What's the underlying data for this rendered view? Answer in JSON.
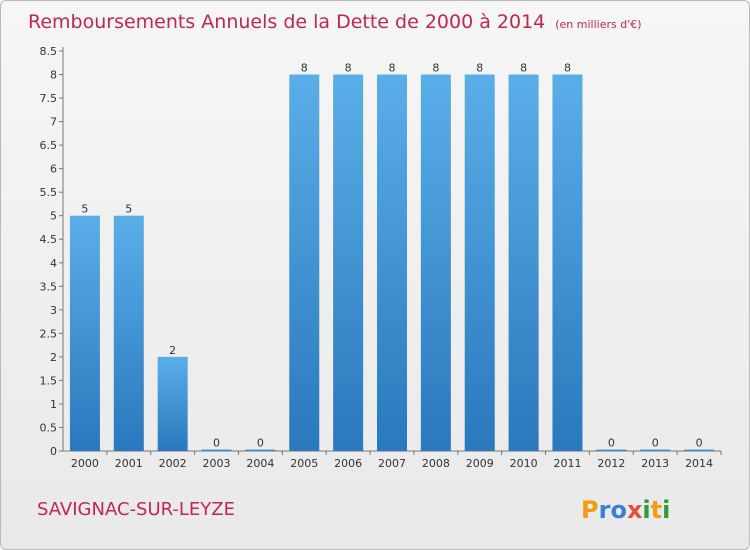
{
  "chart_data": {
    "type": "bar",
    "title": "Remboursements Annuels de la Dette de 2000 à 2014",
    "subtitle": "(en milliers d'€)",
    "categories": [
      "2000",
      "2001",
      "2002",
      "2003",
      "2004",
      "2005",
      "2006",
      "2007",
      "2008",
      "2009",
      "2010",
      "2011",
      "2012",
      "2013",
      "2014"
    ],
    "values": [
      5,
      5,
      2,
      0,
      0,
      8,
      8,
      8,
      8,
      8,
      8,
      8,
      0,
      0,
      0
    ],
    "data_labels": [
      "5",
      "5",
      "2",
      "0",
      "0",
      "8",
      "8",
      "8",
      "8",
      "8",
      "8",
      "8",
      "0",
      "0",
      "0"
    ],
    "y_ticks": [
      0,
      0.5,
      1,
      1.5,
      2,
      2.5,
      3,
      3.5,
      4,
      4.5,
      5,
      5.5,
      6,
      6.5,
      7,
      7.5,
      8,
      8.5
    ],
    "y_tick_labels": [
      "0",
      "0.5",
      "1",
      "1.5",
      "2",
      "2.5",
      "3",
      "3.5",
      "4",
      "4.5",
      "5",
      "5.5",
      "6",
      "6.5",
      "7",
      "7.5",
      "8",
      "8.5"
    ],
    "ylim": [
      0,
      8.5
    ],
    "xlabel": "",
    "ylabel": "",
    "grid": false,
    "legend": "none",
    "bar_color": "#4d9fdf"
  },
  "commune": "SAVIGNAC-SUR-LEYZE",
  "logo": {
    "letters": [
      "P",
      "r",
      "o",
      "x",
      "i",
      "t",
      "i"
    ],
    "colors": [
      "#f39c12",
      "#3a7fd5",
      "#3a7fd5",
      "#e74c3c",
      "#2a9d3a",
      "#f39c12",
      "#2a9d3a"
    ]
  }
}
